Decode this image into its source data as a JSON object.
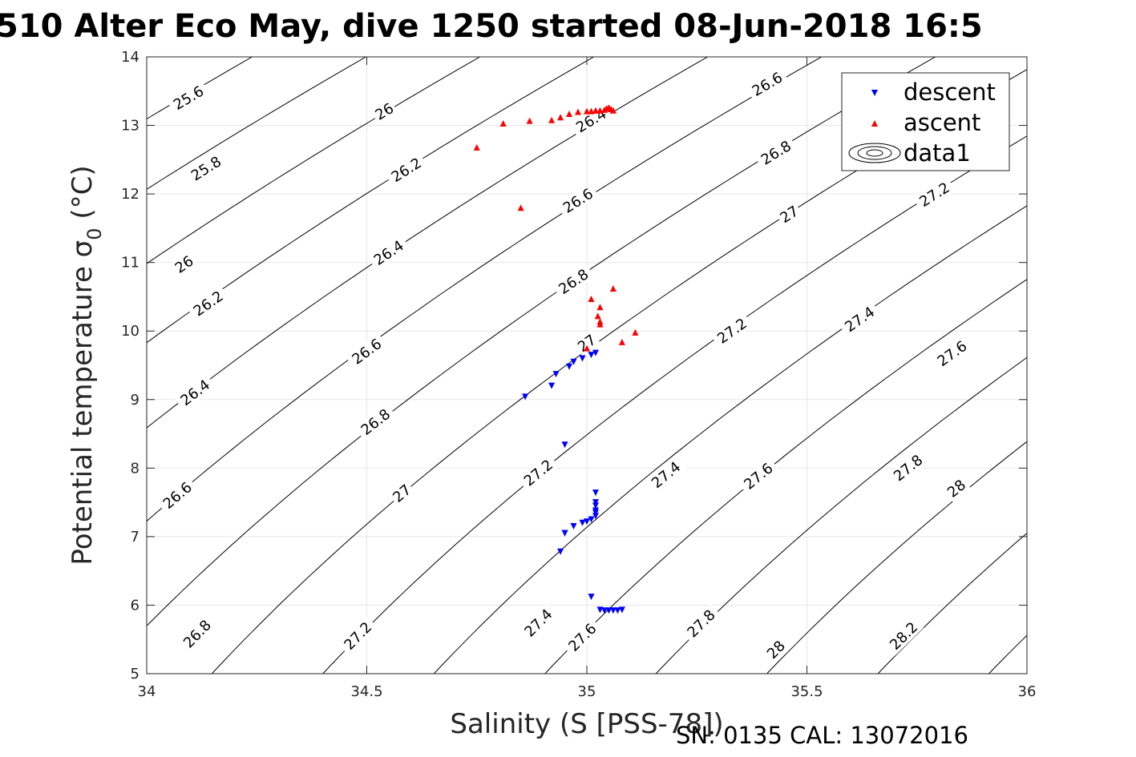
{
  "chart_data": {
    "type": "scatter",
    "title": "510 Alter Eco May, dive 1250 started 08-Jun-2018 16:5",
    "xlabel": "Salinity (S [PSS-78])",
    "ylabel_main": "Potential temperature σ",
    "ylabel_sub": "0",
    "ylabel_unit": " (°C)",
    "xlim": [
      34,
      36
    ],
    "ylim": [
      5,
      14
    ],
    "xticks": [
      34,
      34.5,
      35,
      35.5,
      36
    ],
    "xtick_labels": [
      "34",
      "34.5",
      "35",
      "35.5",
      "36"
    ],
    "yticks": [
      5,
      6,
      7,
      8,
      9,
      10,
      11,
      12,
      13,
      14
    ],
    "ytick_labels": [
      "5",
      "6",
      "7",
      "8",
      "9",
      "10",
      "11",
      "12",
      "13",
      "14"
    ],
    "grid": true,
    "legend_position": "top-right",
    "legend": [
      "descent",
      "ascent",
      "data1"
    ],
    "series": [
      {
        "name": "descent",
        "marker": "triangle-down",
        "color": "#0000ff",
        "x": [
          34.86,
          34.92,
          34.93,
          34.95,
          34.96,
          34.97,
          34.99,
          35.01,
          35.02,
          34.95,
          34.94,
          34.95,
          34.97,
          34.99,
          35.0,
          35.01,
          35.02,
          35.02,
          35.02,
          35.02,
          35.02,
          35.02,
          35.01,
          35.03,
          35.04,
          35.05,
          35.06,
          35.07,
          35.08
        ],
        "y": [
          9.04,
          9.2,
          9.37,
          8.34,
          9.48,
          9.55,
          9.6,
          9.65,
          9.68,
          7.05,
          6.78,
          7.05,
          7.15,
          7.2,
          7.22,
          7.25,
          7.3,
          7.38,
          7.45,
          7.5,
          7.64,
          7.35,
          6.12,
          5.93,
          5.92,
          5.92,
          5.92,
          5.92,
          5.93
        ]
      },
      {
        "name": "ascent",
        "marker": "triangle-up",
        "color": "#ff0000",
        "x": [
          34.75,
          34.81,
          34.85,
          34.87,
          34.92,
          34.94,
          34.96,
          34.98,
          35.0,
          35.01,
          35.02,
          35.03,
          35.04,
          35.045,
          35.05,
          35.055,
          35.06,
          35.06,
          35.01,
          35.03,
          35.025,
          35.03,
          35.03,
          35.11,
          35.08,
          35.0
        ],
        "y": [
          12.68,
          13.03,
          11.8,
          13.07,
          13.08,
          13.12,
          13.17,
          13.2,
          13.21,
          13.21,
          13.22,
          13.22,
          13.23,
          13.25,
          13.26,
          13.24,
          13.22,
          10.62,
          10.47,
          10.35,
          10.22,
          10.1,
          10.14,
          9.98,
          9.84,
          9.75
        ]
      }
    ],
    "contours": {
      "name": "data1",
      "color": "#000000",
      "levels": [
        25.6,
        25.8,
        26,
        26.2,
        26.4,
        26.6,
        26.8,
        27,
        27.2,
        27.4,
        27.6,
        27.8,
        28,
        28.2
      ],
      "labels": [
        {
          "text": "25.6",
          "s": 34.095,
          "t": 13.4
        },
        {
          "text": "25.8",
          "s": 34.135,
          "t": 12.37
        },
        {
          "text": "26",
          "s": 34.085,
          "t": 10.97
        },
        {
          "text": "26.2",
          "s": 34.14,
          "t": 10.4
        },
        {
          "text": "26.4",
          "s": 34.11,
          "t": 9.1
        },
        {
          "text": "26.6",
          "s": 34.07,
          "t": 7.6
        },
        {
          "text": "26.8",
          "s": 34.115,
          "t": 5.58
        },
        {
          "text": "26",
          "s": 34.54,
          "t": 13.2
        },
        {
          "text": "26.2",
          "s": 34.59,
          "t": 12.35
        },
        {
          "text": "26.4",
          "s": 34.55,
          "t": 11.14
        },
        {
          "text": "26.6",
          "s": 34.5,
          "t": 9.7
        },
        {
          "text": "26.8",
          "s": 34.52,
          "t": 8.67
        },
        {
          "text": "27",
          "s": 34.58,
          "t": 7.63
        },
        {
          "text": "27.2",
          "s": 34.48,
          "t": 5.55
        },
        {
          "text": "26.4",
          "s": 35.01,
          "t": 13.07
        },
        {
          "text": "26.6",
          "s": 34.98,
          "t": 11.9
        },
        {
          "text": "26.8",
          "s": 34.97,
          "t": 10.72
        },
        {
          "text": "27",
          "s": 35.0,
          "t": 9.82
        },
        {
          "text": "27.2",
          "s": 34.89,
          "t": 7.93
        },
        {
          "text": "27.4",
          "s": 34.89,
          "t": 5.74
        },
        {
          "text": "27.6",
          "s": 34.99,
          "t": 5.53
        },
        {
          "text": "26.6",
          "s": 35.41,
          "t": 13.6
        },
        {
          "text": "26.8",
          "s": 35.43,
          "t": 12.6
        },
        {
          "text": "27",
          "s": 35.46,
          "t": 11.7
        },
        {
          "text": "27.2",
          "s": 35.33,
          "t": 10.0
        },
        {
          "text": "27.4",
          "s": 35.18,
          "t": 7.9
        },
        {
          "text": "27.6",
          "s": 35.39,
          "t": 7.88
        },
        {
          "text": "27.8",
          "s": 35.26,
          "t": 5.73
        },
        {
          "text": "28",
          "s": 35.43,
          "t": 5.35
        },
        {
          "text": "27.2",
          "s": 35.79,
          "t": 11.99
        },
        {
          "text": "27.4",
          "s": 35.62,
          "t": 10.17
        },
        {
          "text": "27.6",
          "s": 35.83,
          "t": 9.67
        },
        {
          "text": "27.8",
          "s": 35.73,
          "t": 8.0
        },
        {
          "text": "28",
          "s": 35.84,
          "t": 7.7
        },
        {
          "text": "28.2",
          "s": 35.72,
          "t": 5.55
        }
      ]
    }
  },
  "footer_text": "SN: 0135  CAL: 13072016"
}
